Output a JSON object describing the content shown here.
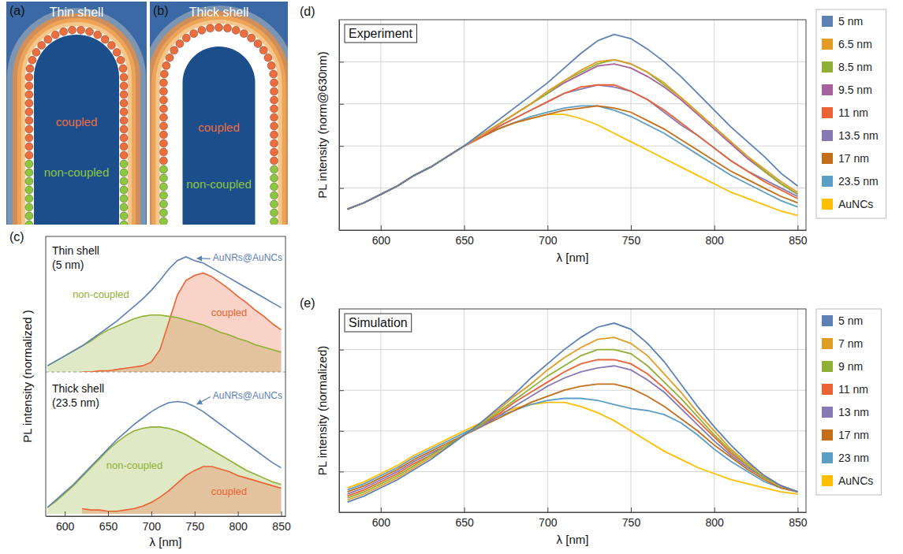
{
  "chart_data": [
    {
      "type": "diagram",
      "panel_label": "(a)",
      "title": "Thin shell",
      "series": [
        {
          "name": "coupled",
          "color": "#ee6d3e"
        },
        {
          "name": "non-coupled",
          "color": "#8dc63f"
        }
      ]
    },
    {
      "type": "diagram",
      "panel_label": "(b)",
      "title": "Thick shell",
      "series": [
        {
          "name": "coupled",
          "color": "#ee6d3e"
        },
        {
          "name": "non-coupled",
          "color": "#8dc63f"
        }
      ]
    },
    {
      "type": "area",
      "panel_label": "(c)",
      "x_label": "λ [nm]",
      "y_label": "PL intensity (normalized )",
      "xlim": [
        578,
        855
      ],
      "xticks": [
        600,
        650,
        700,
        750,
        800,
        850
      ],
      "tick_labels": "x",
      "x": [
        580,
        590,
        600,
        610,
        620,
        630,
        640,
        650,
        660,
        670,
        680,
        690,
        700,
        710,
        720,
        730,
        740,
        750,
        760,
        770,
        780,
        790,
        800,
        810,
        820,
        830,
        840,
        850
      ],
      "subplots": [
        {
          "title": [
            "Thin shell",
            "(5 nm)"
          ],
          "ylim": [
            0,
            1
          ],
          "series": [
            {
              "name": "AuNRs@AuNCs",
              "type": "line",
              "color": "#5e81b5",
              "values": [
                0.05,
                0.09,
                0.13,
                0.17,
                0.21,
                0.26,
                0.31,
                0.36,
                0.41,
                0.47,
                0.53,
                0.59,
                0.66,
                0.74,
                0.83,
                0.9,
                0.93,
                0.9,
                0.88,
                0.84,
                0.8,
                0.76,
                0.72,
                0.68,
                0.64,
                0.6,
                0.56,
                0.52
              ]
            },
            {
              "name": "non-coupled",
              "type": "area",
              "color": "#8fb032",
              "values": [
                0.05,
                0.09,
                0.13,
                0.17,
                0.21,
                0.25,
                0.3,
                0.34,
                0.37,
                0.4,
                0.43,
                0.45,
                0.46,
                0.46,
                0.45,
                0.44,
                0.42,
                0.4,
                0.38,
                0.35,
                0.32,
                0.3,
                0.27,
                0.25,
                0.22,
                0.2,
                0.18,
                0.16
              ]
            },
            {
              "name": "coupled",
              "type": "area",
              "color": "#eb6235",
              "values": [
                null,
                null,
                null,
                null,
                0,
                0,
                0.01,
                0.01,
                0.02,
                0.03,
                0.04,
                0.05,
                0.08,
                0.18,
                0.4,
                0.62,
                0.74,
                0.78,
                0.8,
                0.77,
                0.72,
                0.67,
                0.61,
                0.56,
                0.5,
                0.45,
                0.39,
                0.34
              ]
            }
          ]
        },
        {
          "title": [
            "Thick shell",
            "(23.5 nm)"
          ],
          "ylim": [
            0,
            1
          ],
          "series": [
            {
              "name": "AuNRs@AuNCs",
              "type": "line",
              "color": "#5e81b5",
              "values": [
                0.05,
                0.11,
                0.17,
                0.23,
                0.3,
                0.37,
                0.44,
                0.51,
                0.58,
                0.64,
                0.7,
                0.75,
                0.8,
                0.84,
                0.87,
                0.88,
                0.87,
                0.84,
                0.8,
                0.75,
                0.7,
                0.65,
                0.6,
                0.55,
                0.5,
                0.45,
                0.4,
                0.36
              ]
            },
            {
              "name": "non-coupled",
              "type": "area",
              "color": "#8fb032",
              "values": [
                0.05,
                0.1,
                0.16,
                0.22,
                0.29,
                0.36,
                0.43,
                0.5,
                0.56,
                0.61,
                0.65,
                0.67,
                0.68,
                0.68,
                0.67,
                0.65,
                0.62,
                0.58,
                0.54,
                0.5,
                0.46,
                0.42,
                0.38,
                0.34,
                0.31,
                0.28,
                0.25,
                0.23
              ]
            },
            {
              "name": "coupled",
              "type": "area",
              "color": "#eb6235",
              "values": [
                null,
                null,
                null,
                null,
                0.04,
                0.03,
                0.03,
                0.02,
                0.02,
                0.03,
                0.04,
                0.06,
                0.09,
                0.13,
                0.18,
                0.24,
                0.3,
                0.34,
                0.37,
                0.37,
                0.35,
                0.33,
                0.3,
                0.28,
                0.26,
                0.24,
                0.22,
                0.2
              ]
            }
          ]
        }
      ]
    },
    {
      "type": "line",
      "panel_label": "(d)",
      "title": "Experiment",
      "x_label": "λ [nm]",
      "y_label": "PL intensity (norm@630nm)",
      "xlim": [
        575,
        855
      ],
      "xticks": [
        600,
        650,
        700,
        750,
        800,
        850
      ],
      "ylim": [
        0,
        1
      ],
      "yticks": [
        0.2,
        0.4,
        0.6,
        0.8
      ],
      "grid": true,
      "tick_labels": "x",
      "legend": "right",
      "x": [
        580,
        590,
        600,
        610,
        620,
        630,
        640,
        650,
        660,
        670,
        680,
        690,
        700,
        710,
        720,
        730,
        740,
        750,
        760,
        770,
        780,
        790,
        800,
        810,
        820,
        830,
        840,
        850
      ],
      "series": [
        {
          "name": "5 nm",
          "color": "#5e81b5",
          "values": [
            0.1,
            0.13,
            0.17,
            0.21,
            0.26,
            0.3,
            0.35,
            0.4,
            0.46,
            0.52,
            0.58,
            0.64,
            0.7,
            0.77,
            0.84,
            0.9,
            0.93,
            0.91,
            0.86,
            0.8,
            0.73,
            0.65,
            0.57,
            0.49,
            0.42,
            0.35,
            0.27,
            0.21
          ]
        },
        {
          "name": "6.5 nm",
          "color": "#e19c24",
          "values": [
            0.1,
            0.13,
            0.17,
            0.21,
            0.26,
            0.3,
            0.35,
            0.4,
            0.45,
            0.5,
            0.55,
            0.6,
            0.66,
            0.71,
            0.76,
            0.8,
            0.81,
            0.79,
            0.75,
            0.7,
            0.63,
            0.56,
            0.49,
            0.42,
            0.35,
            0.29,
            0.23,
            0.18
          ]
        },
        {
          "name": "8.5 nm",
          "color": "#8fb032",
          "values": [
            0.1,
            0.13,
            0.17,
            0.21,
            0.26,
            0.3,
            0.35,
            0.4,
            0.45,
            0.5,
            0.55,
            0.6,
            0.65,
            0.71,
            0.75,
            0.79,
            0.81,
            0.79,
            0.75,
            0.69,
            0.63,
            0.56,
            0.49,
            0.42,
            0.35,
            0.28,
            0.22,
            0.17
          ]
        },
        {
          "name": "9.5 nm",
          "color": "#a5609d",
          "values": [
            0.1,
            0.13,
            0.17,
            0.21,
            0.26,
            0.3,
            0.35,
            0.4,
            0.45,
            0.5,
            0.55,
            0.6,
            0.65,
            0.7,
            0.74,
            0.78,
            0.79,
            0.77,
            0.73,
            0.68,
            0.62,
            0.55,
            0.48,
            0.41,
            0.34,
            0.28,
            0.22,
            0.17
          ]
        },
        {
          "name": "11 nm",
          "color": "#eb6235",
          "values": [
            0.1,
            0.13,
            0.17,
            0.21,
            0.26,
            0.3,
            0.35,
            0.4,
            0.44,
            0.49,
            0.53,
            0.57,
            0.61,
            0.65,
            0.68,
            0.69,
            0.69,
            0.66,
            0.62,
            0.57,
            0.51,
            0.45,
            0.39,
            0.33,
            0.28,
            0.23,
            0.19,
            0.15
          ]
        },
        {
          "name": "13.5 nm",
          "color": "#8778b3",
          "values": [
            0.1,
            0.13,
            0.17,
            0.21,
            0.26,
            0.3,
            0.35,
            0.4,
            0.44,
            0.49,
            0.53,
            0.57,
            0.61,
            0.65,
            0.67,
            0.69,
            0.68,
            0.66,
            0.62,
            0.56,
            0.5,
            0.45,
            0.39,
            0.33,
            0.28,
            0.24,
            0.2,
            0.16
          ]
        },
        {
          "name": "17 nm",
          "color": "#c56e1a",
          "values": [
            0.1,
            0.13,
            0.17,
            0.21,
            0.26,
            0.3,
            0.35,
            0.4,
            0.44,
            0.48,
            0.51,
            0.53,
            0.55,
            0.57,
            0.58,
            0.59,
            0.58,
            0.56,
            0.52,
            0.48,
            0.43,
            0.38,
            0.33,
            0.28,
            0.24,
            0.2,
            0.16,
            0.13
          ]
        },
        {
          "name": "23.5 nm",
          "color": "#5d9ec7",
          "values": [
            0.1,
            0.13,
            0.17,
            0.21,
            0.26,
            0.3,
            0.35,
            0.4,
            0.44,
            0.48,
            0.51,
            0.54,
            0.56,
            0.58,
            0.59,
            0.59,
            0.57,
            0.54,
            0.5,
            0.46,
            0.41,
            0.36,
            0.31,
            0.26,
            0.22,
            0.18,
            0.14,
            0.11
          ]
        },
        {
          "name": "AuNCs",
          "color": "#ffbf00",
          "values": [
            0.1,
            0.13,
            0.17,
            0.21,
            0.26,
            0.3,
            0.35,
            0.4,
            0.44,
            0.48,
            0.51,
            0.53,
            0.55,
            0.55,
            0.53,
            0.5,
            0.46,
            0.42,
            0.38,
            0.34,
            0.3,
            0.26,
            0.22,
            0.18,
            0.15,
            0.12,
            0.09,
            0.07
          ]
        }
      ]
    },
    {
      "type": "line",
      "panel_label": "(e)",
      "title": "Simulation",
      "x_label": "λ [nm]",
      "y_label": "PL intensity (normalized)",
      "xlim": [
        575,
        855
      ],
      "xticks": [
        600,
        650,
        700,
        750,
        800,
        850
      ],
      "ylim": [
        0,
        1
      ],
      "yticks": [
        0.2,
        0.4,
        0.6,
        0.8
      ],
      "grid": true,
      "tick_labels": "x",
      "legend": "right",
      "x": [
        580,
        590,
        600,
        610,
        620,
        630,
        640,
        650,
        660,
        670,
        680,
        690,
        700,
        710,
        720,
        730,
        740,
        750,
        760,
        770,
        780,
        790,
        800,
        810,
        820,
        830,
        840,
        850
      ],
      "series": [
        {
          "name": "5 nm",
          "color": "#5e81b5",
          "values": [
            0.05,
            0.08,
            0.12,
            0.16,
            0.21,
            0.26,
            0.32,
            0.38,
            0.44,
            0.51,
            0.58,
            0.66,
            0.73,
            0.8,
            0.86,
            0.91,
            0.93,
            0.9,
            0.83,
            0.74,
            0.63,
            0.52,
            0.42,
            0.33,
            0.25,
            0.18,
            0.13,
            0.1
          ]
        },
        {
          "name": "7 nm",
          "color": "#e19c24",
          "values": [
            0.06,
            0.09,
            0.13,
            0.17,
            0.22,
            0.27,
            0.32,
            0.38,
            0.44,
            0.5,
            0.57,
            0.63,
            0.7,
            0.76,
            0.81,
            0.85,
            0.86,
            0.83,
            0.77,
            0.68,
            0.59,
            0.49,
            0.4,
            0.31,
            0.24,
            0.18,
            0.13,
            0.1
          ]
        },
        {
          "name": "9 nm",
          "color": "#8fb032",
          "values": [
            0.07,
            0.1,
            0.14,
            0.18,
            0.23,
            0.28,
            0.33,
            0.38,
            0.43,
            0.49,
            0.55,
            0.61,
            0.67,
            0.72,
            0.77,
            0.8,
            0.8,
            0.78,
            0.72,
            0.64,
            0.56,
            0.47,
            0.38,
            0.3,
            0.23,
            0.17,
            0.13,
            0.1
          ]
        },
        {
          "name": "11 nm",
          "color": "#eb6235",
          "values": [
            0.08,
            0.11,
            0.15,
            0.19,
            0.24,
            0.28,
            0.33,
            0.38,
            0.43,
            0.48,
            0.54,
            0.59,
            0.64,
            0.69,
            0.73,
            0.75,
            0.75,
            0.73,
            0.68,
            0.61,
            0.53,
            0.45,
            0.37,
            0.29,
            0.23,
            0.17,
            0.13,
            0.1
          ]
        },
        {
          "name": "13 nm",
          "color": "#8778b3",
          "values": [
            0.09,
            0.12,
            0.16,
            0.2,
            0.25,
            0.29,
            0.33,
            0.38,
            0.42,
            0.47,
            0.52,
            0.57,
            0.62,
            0.66,
            0.69,
            0.71,
            0.72,
            0.7,
            0.65,
            0.59,
            0.51,
            0.43,
            0.35,
            0.28,
            0.22,
            0.17,
            0.13,
            0.1
          ]
        },
        {
          "name": "17 nm",
          "color": "#c56e1a",
          "values": [
            0.1,
            0.13,
            0.17,
            0.21,
            0.26,
            0.3,
            0.34,
            0.38,
            0.42,
            0.46,
            0.5,
            0.54,
            0.57,
            0.6,
            0.62,
            0.63,
            0.63,
            0.61,
            0.57,
            0.52,
            0.46,
            0.4,
            0.33,
            0.27,
            0.21,
            0.16,
            0.12,
            0.1
          ]
        },
        {
          "name": "23 nm",
          "color": "#5d9ec7",
          "values": [
            0.11,
            0.14,
            0.18,
            0.22,
            0.27,
            0.31,
            0.35,
            0.39,
            0.43,
            0.47,
            0.5,
            0.53,
            0.55,
            0.56,
            0.56,
            0.55,
            0.53,
            0.51,
            0.5,
            0.48,
            0.44,
            0.38,
            0.31,
            0.25,
            0.2,
            0.15,
            0.12,
            0.1
          ]
        },
        {
          "name": "AuNCs",
          "color": "#ffbf00",
          "values": [
            0.12,
            0.15,
            0.19,
            0.23,
            0.28,
            0.32,
            0.36,
            0.4,
            0.44,
            0.48,
            0.51,
            0.53,
            0.54,
            0.54,
            0.52,
            0.49,
            0.45,
            0.4,
            0.35,
            0.3,
            0.26,
            0.22,
            0.19,
            0.16,
            0.14,
            0.12,
            0.1,
            0.09
          ]
        }
      ]
    }
  ]
}
